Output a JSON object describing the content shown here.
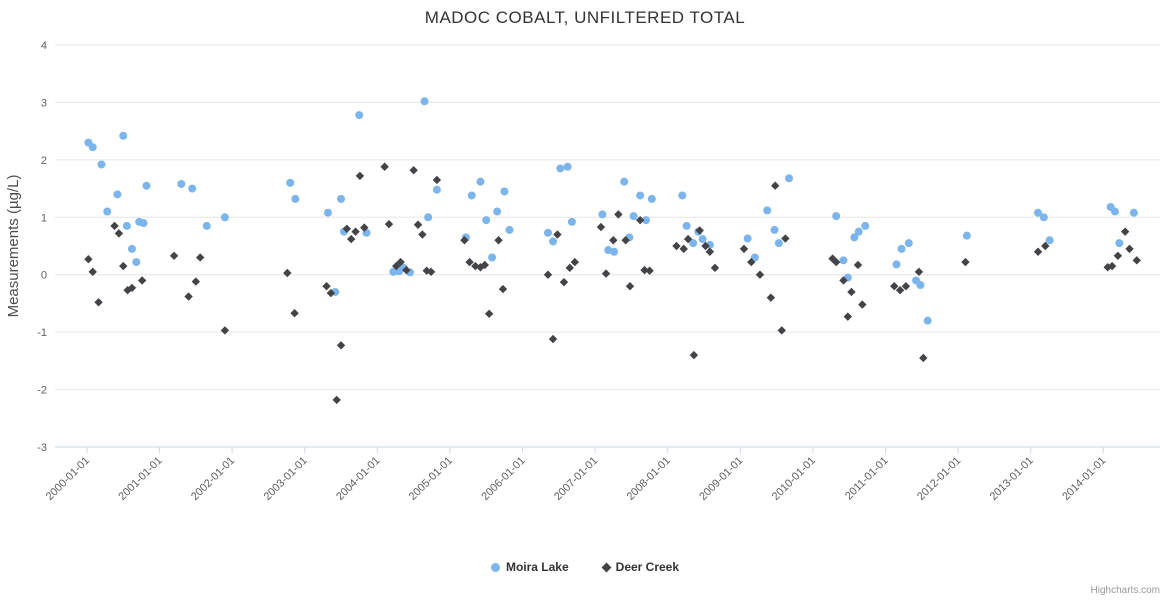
{
  "credits": "Highcharts.com",
  "chart_data": {
    "type": "scatter",
    "title": "MADOC COBALT, UNFILTERED TOTAL",
    "xlabel": "",
    "ylabel": "Measurements (µg/L)",
    "ylim": [
      -3,
      4
    ],
    "xlim": [
      1999.56,
      2014.78
    ],
    "grid": true,
    "legend_position": "bottom",
    "y_ticks": [
      4,
      3,
      2,
      1,
      0,
      -1,
      -2,
      -3
    ],
    "x_ticks": [
      2000,
      2001,
      2002,
      2003,
      2004,
      2005,
      2006,
      2007,
      2008,
      2009,
      2010,
      2011,
      2012,
      2013,
      2014
    ],
    "x_tick_labels": [
      "2000-01-01",
      "2001-01-01",
      "2002-01-01",
      "2003-01-01",
      "2004-01-01",
      "2005-01-01",
      "2006-01-01",
      "2007-01-01",
      "2008-01-01",
      "2009-01-01",
      "2010-01-01",
      "2011-01-01",
      "2012-01-01",
      "2013-01-01",
      "2014-01-01"
    ],
    "series": [
      {
        "name": "Moira Lake",
        "color": "#7cb5ec",
        "marker": "circle",
        "data": [
          [
            2000.02,
            2.3
          ],
          [
            2000.08,
            2.22
          ],
          [
            2000.2,
            1.92
          ],
          [
            2000.28,
            1.1
          ],
          [
            2000.42,
            1.4
          ],
          [
            2000.5,
            2.42
          ],
          [
            2000.55,
            0.85
          ],
          [
            2000.62,
            0.45
          ],
          [
            2000.68,
            0.22
          ],
          [
            2000.72,
            0.92
          ],
          [
            2000.78,
            0.9
          ],
          [
            2000.82,
            1.55
          ],
          [
            2001.3,
            1.58
          ],
          [
            2001.45,
            1.5
          ],
          [
            2001.65,
            0.85
          ],
          [
            2001.9,
            1.0
          ],
          [
            2002.8,
            1.6
          ],
          [
            2002.87,
            1.32
          ],
          [
            2003.32,
            1.08
          ],
          [
            2003.42,
            -0.3
          ],
          [
            2003.5,
            1.32
          ],
          [
            2003.54,
            0.75
          ],
          [
            2003.75,
            2.78
          ],
          [
            2003.85,
            0.73
          ],
          [
            2004.22,
            0.05
          ],
          [
            2004.3,
            0.06
          ],
          [
            2004.36,
            0.12
          ],
          [
            2004.45,
            0.04
          ],
          [
            2004.65,
            3.02
          ],
          [
            2004.7,
            1.0
          ],
          [
            2004.82,
            1.48
          ],
          [
            2005.22,
            0.65
          ],
          [
            2005.3,
            1.38
          ],
          [
            2005.42,
            1.62
          ],
          [
            2005.5,
            0.95
          ],
          [
            2005.58,
            0.3
          ],
          [
            2005.65,
            1.1
          ],
          [
            2005.75,
            1.45
          ],
          [
            2005.82,
            0.78
          ],
          [
            2006.35,
            0.73
          ],
          [
            2006.42,
            0.58
          ],
          [
            2006.52,
            1.85
          ],
          [
            2006.62,
            1.88
          ],
          [
            2006.68,
            0.92
          ],
          [
            2007.1,
            1.05
          ],
          [
            2007.18,
            0.43
          ],
          [
            2007.26,
            0.4
          ],
          [
            2007.4,
            1.62
          ],
          [
            2007.47,
            0.65
          ],
          [
            2007.53,
            1.02
          ],
          [
            2007.62,
            1.38
          ],
          [
            2007.7,
            0.95
          ],
          [
            2007.78,
            1.32
          ],
          [
            2008.2,
            1.38
          ],
          [
            2008.26,
            0.85
          ],
          [
            2008.35,
            0.55
          ],
          [
            2008.42,
            0.75
          ],
          [
            2008.48,
            0.62
          ],
          [
            2008.58,
            0.52
          ],
          [
            2009.1,
            0.63
          ],
          [
            2009.2,
            0.3
          ],
          [
            2009.37,
            1.12
          ],
          [
            2009.47,
            0.78
          ],
          [
            2009.53,
            0.55
          ],
          [
            2009.67,
            1.68
          ],
          [
            2010.32,
            1.02
          ],
          [
            2010.42,
            0.25
          ],
          [
            2010.48,
            -0.05
          ],
          [
            2010.57,
            0.65
          ],
          [
            2010.63,
            0.75
          ],
          [
            2010.72,
            0.85
          ],
          [
            2011.15,
            0.18
          ],
          [
            2011.22,
            0.45
          ],
          [
            2011.32,
            0.55
          ],
          [
            2011.42,
            -0.1
          ],
          [
            2011.48,
            -0.18
          ],
          [
            2011.58,
            -0.8
          ],
          [
            2012.12,
            0.68
          ],
          [
            2013.1,
            1.08
          ],
          [
            2013.18,
            1.0
          ],
          [
            2013.26,
            0.6
          ],
          [
            2014.1,
            1.18
          ],
          [
            2014.16,
            1.1
          ],
          [
            2014.22,
            0.55
          ],
          [
            2014.42,
            1.08
          ]
        ]
      },
      {
        "name": "Deer Creek",
        "color": "#434348",
        "marker": "diamond",
        "data": [
          [
            2000.02,
            0.27
          ],
          [
            2000.08,
            0.05
          ],
          [
            2000.16,
            -0.48
          ],
          [
            2000.38,
            0.85
          ],
          [
            2000.44,
            0.72
          ],
          [
            2000.5,
            0.15
          ],
          [
            2000.56,
            -0.27
          ],
          [
            2000.62,
            -0.23
          ],
          [
            2000.76,
            -0.1
          ],
          [
            2001.2,
            0.33
          ],
          [
            2001.4,
            -0.38
          ],
          [
            2001.5,
            -0.12
          ],
          [
            2001.56,
            0.3
          ],
          [
            2001.9,
            -0.97
          ],
          [
            2002.76,
            0.03
          ],
          [
            2002.86,
            -0.67
          ],
          [
            2003.3,
            -0.2
          ],
          [
            2003.36,
            -0.32
          ],
          [
            2003.44,
            -2.18
          ],
          [
            2003.5,
            -1.23
          ],
          [
            2003.58,
            0.8
          ],
          [
            2003.64,
            0.62
          ],
          [
            2003.7,
            0.75
          ],
          [
            2003.76,
            1.72
          ],
          [
            2003.82,
            0.82
          ],
          [
            2004.1,
            1.88
          ],
          [
            2004.16,
            0.88
          ],
          [
            2004.26,
            0.15
          ],
          [
            2004.32,
            0.22
          ],
          [
            2004.4,
            0.08
          ],
          [
            2004.5,
            1.82
          ],
          [
            2004.56,
            0.87
          ],
          [
            2004.62,
            0.7
          ],
          [
            2004.68,
            0.07
          ],
          [
            2004.74,
            0.05
          ],
          [
            2004.82,
            1.65
          ],
          [
            2005.2,
            0.6
          ],
          [
            2005.27,
            0.22
          ],
          [
            2005.35,
            0.15
          ],
          [
            2005.42,
            0.13
          ],
          [
            2005.48,
            0.17
          ],
          [
            2005.54,
            -0.68
          ],
          [
            2005.67,
            0.6
          ],
          [
            2005.73,
            -0.25
          ],
          [
            2006.35,
            0.0
          ],
          [
            2006.42,
            -1.12
          ],
          [
            2006.48,
            0.7
          ],
          [
            2006.57,
            -0.13
          ],
          [
            2006.65,
            0.12
          ],
          [
            2006.72,
            0.22
          ],
          [
            2007.08,
            0.83
          ],
          [
            2007.15,
            0.02
          ],
          [
            2007.25,
            0.6
          ],
          [
            2007.32,
            1.05
          ],
          [
            2007.42,
            0.6
          ],
          [
            2007.48,
            -0.2
          ],
          [
            2007.62,
            0.95
          ],
          [
            2007.68,
            0.08
          ],
          [
            2007.75,
            0.07
          ],
          [
            2008.12,
            0.5
          ],
          [
            2008.22,
            0.45
          ],
          [
            2008.28,
            0.62
          ],
          [
            2008.36,
            -1.4
          ],
          [
            2008.44,
            0.77
          ],
          [
            2008.52,
            0.5
          ],
          [
            2008.58,
            0.4
          ],
          [
            2008.65,
            0.12
          ],
          [
            2009.05,
            0.45
          ],
          [
            2009.15,
            0.22
          ],
          [
            2009.27,
            0.0
          ],
          [
            2009.42,
            -0.4
          ],
          [
            2009.48,
            1.55
          ],
          [
            2009.57,
            -0.97
          ],
          [
            2009.62,
            0.63
          ],
          [
            2010.27,
            0.28
          ],
          [
            2010.32,
            0.22
          ],
          [
            2010.42,
            -0.1
          ],
          [
            2010.48,
            -0.73
          ],
          [
            2010.53,
            -0.3
          ],
          [
            2010.62,
            0.17
          ],
          [
            2010.68,
            -0.52
          ],
          [
            2011.12,
            -0.2
          ],
          [
            2011.2,
            -0.27
          ],
          [
            2011.28,
            -0.2
          ],
          [
            2011.46,
            0.05
          ],
          [
            2011.52,
            -1.45
          ],
          [
            2012.1,
            0.22
          ],
          [
            2013.1,
            0.4
          ],
          [
            2013.2,
            0.5
          ],
          [
            2014.06,
            0.13
          ],
          [
            2014.12,
            0.15
          ],
          [
            2014.2,
            0.33
          ],
          [
            2014.3,
            0.75
          ],
          [
            2014.36,
            0.45
          ],
          [
            2014.46,
            0.25
          ]
        ]
      }
    ]
  }
}
